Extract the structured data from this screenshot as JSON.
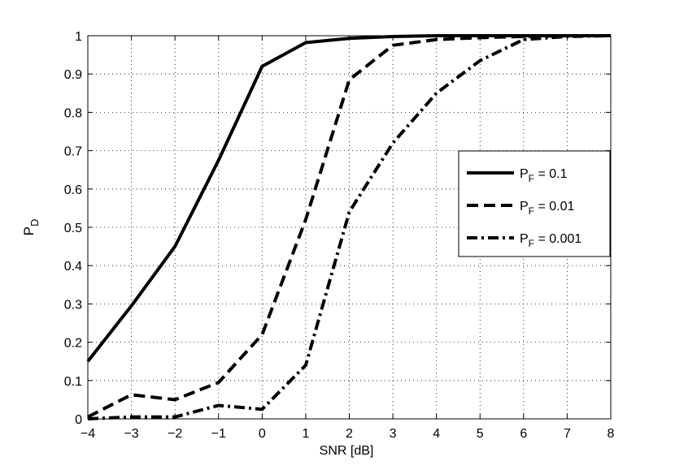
{
  "chart_data": {
    "type": "line",
    "xlabel": "SNR [dB]",
    "ylabel": {
      "main": "P",
      "sub": "D"
    },
    "xlim": [
      -4,
      8
    ],
    "ylim": [
      0,
      1
    ],
    "xticks": [
      -4,
      -3,
      -2,
      -1,
      0,
      1,
      2,
      3,
      4,
      5,
      6,
      7,
      8
    ],
    "xtick_labels": [
      "−4",
      "−3",
      "−2",
      "−1",
      "0",
      "1",
      "2",
      "3",
      "4",
      "5",
      "6",
      "7",
      "8"
    ],
    "yticks": [
      0,
      0.1,
      0.2,
      0.3,
      0.4,
      0.5,
      0.6,
      0.7,
      0.8,
      0.9,
      1
    ],
    "ytick_labels": [
      "0",
      "0.1",
      "0.2",
      "0.3",
      "0.4",
      "0.5",
      "0.6",
      "0.7",
      "0.8",
      "0.9",
      "1"
    ],
    "grid": true,
    "legend_position": "right",
    "series": [
      {
        "legend_main": "P",
        "legend_sub": "F",
        "legend_rest": " = 0.1",
        "style": "solid",
        "color": "#000000",
        "x": [
          -4,
          -3,
          -2,
          -1,
          0,
          1,
          2,
          3,
          4,
          5,
          6,
          7,
          8
        ],
        "y": [
          0.15,
          0.295,
          0.45,
          0.675,
          0.92,
          0.982,
          0.993,
          0.998,
          1.0,
          1.0,
          1.0,
          1.0,
          1.0
        ]
      },
      {
        "legend_main": "P",
        "legend_sub": "F",
        "legend_rest": " = 0.01",
        "style": "dashed",
        "color": "#000000",
        "x": [
          -4,
          -3,
          -2,
          -1,
          0,
          1,
          2,
          3,
          4,
          5,
          6,
          7,
          8
        ],
        "y": [
          0.005,
          0.063,
          0.05,
          0.095,
          0.22,
          0.52,
          0.885,
          0.975,
          0.99,
          0.995,
          0.998,
          1.0,
          1.0
        ]
      },
      {
        "legend_main": "P",
        "legend_sub": "F",
        "legend_rest": " = 0.001",
        "style": "dashdot",
        "color": "#000000",
        "x": [
          -4,
          -3,
          -2,
          -1,
          0,
          1,
          2,
          3,
          4,
          5,
          6,
          7,
          8
        ],
        "y": [
          0.0,
          0.005,
          0.005,
          0.035,
          0.025,
          0.14,
          0.54,
          0.72,
          0.85,
          0.935,
          0.99,
          0.998,
          1.0
        ]
      }
    ]
  }
}
